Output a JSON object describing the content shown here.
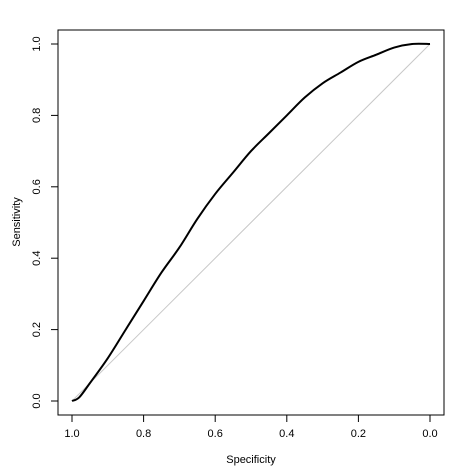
{
  "chart_data": {
    "type": "line",
    "xlabel": "Specificity",
    "ylabel": "Sensitivity",
    "xlim": [
      1.0,
      0.0
    ],
    "ylim": [
      0.0,
      1.0
    ],
    "x_reversed": true,
    "grid": false,
    "x_ticks": [
      "1.0",
      "0.8",
      "0.6",
      "0.4",
      "0.2",
      "0.0"
    ],
    "y_ticks": [
      "0.0",
      "0.2",
      "0.4",
      "0.6",
      "0.8",
      "1.0"
    ],
    "reference_line": {
      "color": "#c8c8c8",
      "from": [
        1.0,
        0.0
      ],
      "to": [
        0.0,
        1.0
      ]
    },
    "series": [
      {
        "color": "#000000",
        "points": [
          {
            "specificity": 1.0,
            "sensitivity": 0.0
          },
          {
            "specificity": 0.98,
            "sensitivity": 0.01
          },
          {
            "specificity": 0.95,
            "sensitivity": 0.05
          },
          {
            "specificity": 0.9,
            "sensitivity": 0.12
          },
          {
            "specificity": 0.85,
            "sensitivity": 0.2
          },
          {
            "specificity": 0.8,
            "sensitivity": 0.28
          },
          {
            "specificity": 0.75,
            "sensitivity": 0.36
          },
          {
            "specificity": 0.7,
            "sensitivity": 0.43
          },
          {
            "specificity": 0.65,
            "sensitivity": 0.51
          },
          {
            "specificity": 0.6,
            "sensitivity": 0.58
          },
          {
            "specificity": 0.55,
            "sensitivity": 0.64
          },
          {
            "specificity": 0.5,
            "sensitivity": 0.7
          },
          {
            "specificity": 0.45,
            "sensitivity": 0.75
          },
          {
            "specificity": 0.4,
            "sensitivity": 0.8
          },
          {
            "specificity": 0.35,
            "sensitivity": 0.85
          },
          {
            "specificity": 0.3,
            "sensitivity": 0.89
          },
          {
            "specificity": 0.25,
            "sensitivity": 0.92
          },
          {
            "specificity": 0.2,
            "sensitivity": 0.95
          },
          {
            "specificity": 0.15,
            "sensitivity": 0.97
          },
          {
            "specificity": 0.1,
            "sensitivity": 0.99
          },
          {
            "specificity": 0.05,
            "sensitivity": 1.0
          },
          {
            "specificity": 0.0,
            "sensitivity": 1.0
          }
        ]
      }
    ]
  }
}
